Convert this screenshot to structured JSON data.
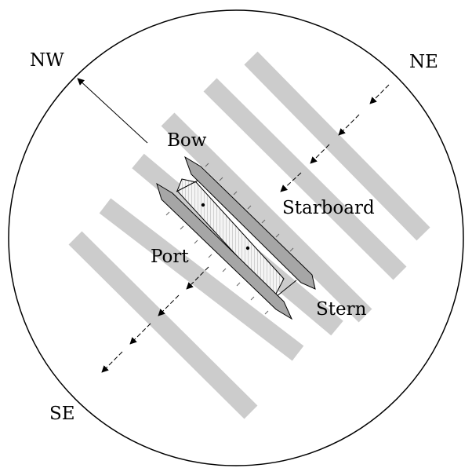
{
  "labels": {
    "nw": "NW",
    "ne": "NE",
    "se": "SE",
    "bow": "Bow",
    "starboard": "Starboard",
    "port": "Port",
    "stern": "Stern"
  },
  "colors": {
    "outline": "#000000",
    "swell_band": "#cccccc",
    "hull": "#a6a6a6",
    "deck": "#eeeeee",
    "arrow": "#000000"
  }
}
